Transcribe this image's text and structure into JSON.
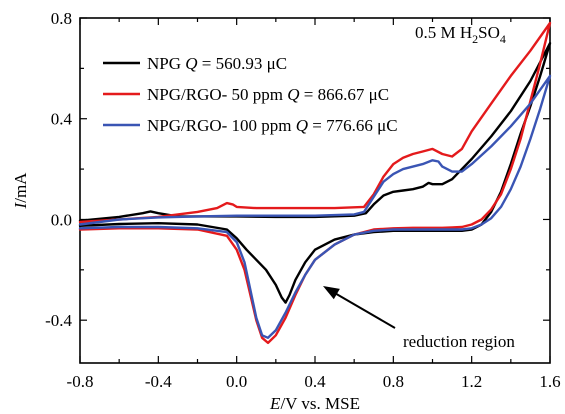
{
  "chart_data": {
    "type": "line",
    "title": "",
    "xlabel": {
      "italic": "E",
      "rest": "/V vs. MSE"
    },
    "ylabel": {
      "italic": "I",
      "rest": "/mA"
    },
    "xlim": [
      -0.8,
      1.6
    ],
    "ylim": [
      -0.57,
      0.8
    ],
    "xticks": [
      -0.8,
      -0.4,
      0.0,
      0.4,
      0.8,
      1.2,
      1.6
    ],
    "xtick_labels": [
      "-0.8",
      "-0.4",
      "0.0",
      "0.4",
      "0.8",
      "1.2",
      "1.6"
    ],
    "yticks": [
      -0.4,
      0.0,
      0.4,
      0.8
    ],
    "ytick_labels": [
      "-0.4",
      "0.0",
      "0.4",
      "0.8"
    ],
    "grid": false,
    "legend_position": "top-left",
    "annotations": {
      "electrolyte": {
        "prefix": "0.5 M H",
        "sub1": "2",
        "mid": "SO",
        "sub2": "4"
      },
      "region_label": "reduction region"
    },
    "series": [
      {
        "name": "NPG Q = 560.93 μC",
        "legend": {
          "label": "NPG ",
          "q_symbol": "Q",
          "q_value": " = 560.93 μC"
        },
        "color": "#000000",
        "x": [
          -0.8,
          -0.6,
          -0.48,
          -0.44,
          -0.4,
          -0.3,
          -0.1,
          0.0,
          0.2,
          0.4,
          0.6,
          0.66,
          0.7,
          0.75,
          0.8,
          0.85,
          0.9,
          0.95,
          0.98,
          1.0,
          1.05,
          1.1,
          1.15,
          1.2,
          1.3,
          1.4,
          1.5,
          1.6,
          1.6,
          1.55,
          1.5,
          1.45,
          1.4,
          1.35,
          1.3,
          1.25,
          1.2,
          1.15,
          1.1,
          1.05,
          1.0,
          0.9,
          0.8,
          0.7,
          0.6,
          0.5,
          0.4,
          0.35,
          0.3,
          0.27,
          0.25,
          0.23,
          0.2,
          0.15,
          0.1,
          0.05,
          0.0,
          -0.05,
          -0.2,
          -0.4,
          -0.6,
          -0.8
        ],
        "y": [
          -0.005,
          0.01,
          0.025,
          0.032,
          0.025,
          0.012,
          0.012,
          0.012,
          0.01,
          0.01,
          0.015,
          0.025,
          0.06,
          0.095,
          0.11,
          0.115,
          0.12,
          0.13,
          0.145,
          0.14,
          0.14,
          0.16,
          0.2,
          0.24,
          0.33,
          0.43,
          0.55,
          0.7,
          0.7,
          0.57,
          0.45,
          0.34,
          0.22,
          0.11,
          0.03,
          -0.02,
          -0.04,
          -0.045,
          -0.045,
          -0.045,
          -0.045,
          -0.045,
          -0.045,
          -0.05,
          -0.06,
          -0.08,
          -0.12,
          -0.17,
          -0.24,
          -0.3,
          -0.33,
          -0.31,
          -0.26,
          -0.2,
          -0.16,
          -0.12,
          -0.075,
          -0.04,
          -0.02,
          -0.015,
          -0.018,
          -0.025
        ]
      },
      {
        "name": "NPG/RGO- 50 ppm Q = 866.67 μC",
        "legend": {
          "label": "NPG/RGO- 50 ppm ",
          "q_symbol": "Q",
          "q_value": " = 866.67 μC"
        },
        "color": "#e41a1c",
        "x": [
          -0.8,
          -0.6,
          -0.4,
          -0.2,
          -0.1,
          -0.05,
          -0.02,
          0.0,
          0.1,
          0.3,
          0.5,
          0.65,
          0.7,
          0.75,
          0.8,
          0.85,
          0.9,
          0.95,
          1.0,
          1.05,
          1.1,
          1.15,
          1.2,
          1.3,
          1.4,
          1.5,
          1.6,
          1.6,
          1.55,
          1.5,
          1.45,
          1.4,
          1.35,
          1.3,
          1.25,
          1.2,
          1.15,
          1.1,
          1.05,
          1.0,
          0.9,
          0.8,
          0.7,
          0.6,
          0.5,
          0.4,
          0.35,
          0.3,
          0.25,
          0.2,
          0.16,
          0.13,
          0.1,
          0.07,
          0.04,
          0.0,
          -0.05,
          -0.2,
          -0.4,
          -0.6,
          -0.8
        ],
        "y": [
          -0.01,
          0.0,
          0.01,
          0.03,
          0.045,
          0.065,
          0.06,
          0.05,
          0.045,
          0.045,
          0.045,
          0.05,
          0.1,
          0.17,
          0.22,
          0.245,
          0.26,
          0.27,
          0.28,
          0.26,
          0.25,
          0.28,
          0.35,
          0.46,
          0.57,
          0.67,
          0.78,
          0.78,
          0.62,
          0.47,
          0.32,
          0.2,
          0.1,
          0.04,
          0.0,
          -0.02,
          -0.03,
          -0.032,
          -0.033,
          -0.033,
          -0.033,
          -0.035,
          -0.04,
          -0.06,
          -0.1,
          -0.16,
          -0.22,
          -0.3,
          -0.39,
          -0.46,
          -0.49,
          -0.47,
          -0.4,
          -0.3,
          -0.2,
          -0.12,
          -0.065,
          -0.04,
          -0.035,
          -0.035,
          -0.04
        ]
      },
      {
        "name": "NPG/RGO- 100 ppm Q = 776.66 μC",
        "legend": {
          "label": "NPG/RGO- 100 ppm ",
          "q_symbol": "Q",
          "q_value": " = 776.66 μC"
        },
        "color": "#3a55b4",
        "x": [
          -0.8,
          -0.6,
          -0.4,
          -0.2,
          0.0,
          0.2,
          0.4,
          0.6,
          0.65,
          0.7,
          0.75,
          0.8,
          0.85,
          0.9,
          0.95,
          1.0,
          1.03,
          1.05,
          1.1,
          1.15,
          1.2,
          1.3,
          1.4,
          1.5,
          1.6,
          1.6,
          1.55,
          1.5,
          1.45,
          1.4,
          1.35,
          1.3,
          1.25,
          1.2,
          1.15,
          1.1,
          1.05,
          1.0,
          0.9,
          0.8,
          0.7,
          0.6,
          0.5,
          0.4,
          0.35,
          0.3,
          0.25,
          0.2,
          0.16,
          0.13,
          0.1,
          0.07,
          0.04,
          0.0,
          -0.05,
          -0.2,
          -0.4,
          -0.6,
          -0.8
        ],
        "y": [
          -0.02,
          0.0,
          0.008,
          0.012,
          0.015,
          0.015,
          0.015,
          0.02,
          0.03,
          0.09,
          0.15,
          0.18,
          0.2,
          0.21,
          0.22,
          0.235,
          0.23,
          0.21,
          0.19,
          0.19,
          0.22,
          0.29,
          0.37,
          0.46,
          0.57,
          0.57,
          0.44,
          0.32,
          0.21,
          0.12,
          0.05,
          0.005,
          -0.02,
          -0.035,
          -0.04,
          -0.04,
          -0.04,
          -0.04,
          -0.04,
          -0.04,
          -0.045,
          -0.06,
          -0.1,
          -0.16,
          -0.22,
          -0.29,
          -0.37,
          -0.44,
          -0.47,
          -0.46,
          -0.39,
          -0.28,
          -0.17,
          -0.09,
          -0.05,
          -0.035,
          -0.03,
          -0.03,
          -0.035
        ]
      }
    ]
  }
}
